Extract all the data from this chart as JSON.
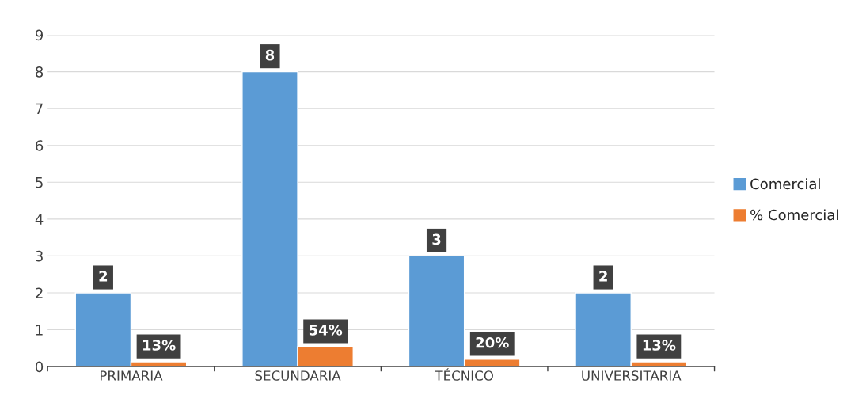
{
  "chart_data": {
    "type": "bar",
    "categories": [
      "PRIMARIA",
      "SECUNDARIA",
      "TÉCNICO",
      "UNIVERSITARIA"
    ],
    "series": [
      {
        "name": "Comercial",
        "color": "#5b9bd5",
        "values": [
          2,
          8,
          3,
          2
        ],
        "value_labels": [
          "2",
          "8",
          "3",
          "2"
        ]
      },
      {
        "name": "% Comercial",
        "color": "#ed7d31",
        "values": [
          0.13,
          0.54,
          0.2,
          0.13
        ],
        "value_labels": [
          "13%",
          "54%",
          "20%",
          "13%"
        ]
      }
    ],
    "ylim": [
      0,
      9
    ],
    "yticks": [
      0,
      1,
      2,
      3,
      4,
      5,
      6,
      7,
      8,
      9
    ],
    "grid": "y",
    "legend": "right"
  }
}
